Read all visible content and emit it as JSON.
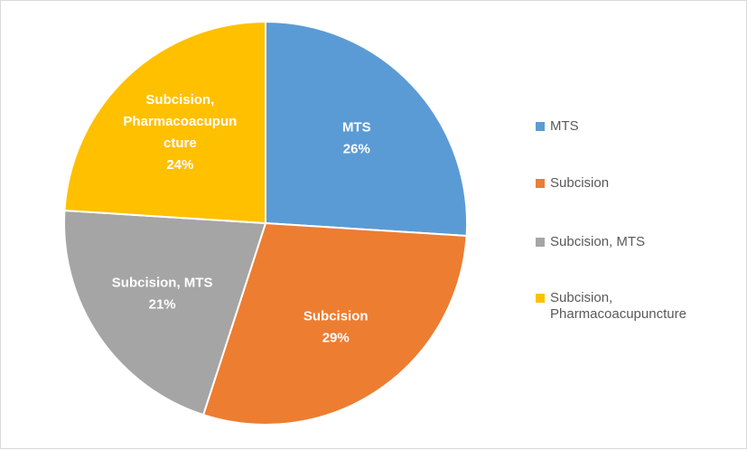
{
  "chart_data": {
    "type": "pie",
    "categories": [
      "MTS",
      "Subcision",
      "Subcision, MTS",
      "Subcision, Pharmacoacupuncture"
    ],
    "values": [
      26,
      29,
      21,
      24
    ],
    "unit": "%",
    "slice_labels": [
      [
        "MTS",
        "26%"
      ],
      [
        "Subcision",
        "29%"
      ],
      [
        "Subcision, MTS",
        "21%"
      ],
      [
        "Subcision,",
        "Pharmacoacupun",
        "cture",
        "24%"
      ]
    ],
    "legend": {
      "placement": "right",
      "entries": [
        "MTS",
        "Subcision",
        "Subcision, MTS",
        "Subcision,\nPharmacoacupuncture"
      ]
    },
    "colors": [
      "#5b9bd5",
      "#ed7d31",
      "#a5a5a5",
      "#ffc000"
    ]
  }
}
